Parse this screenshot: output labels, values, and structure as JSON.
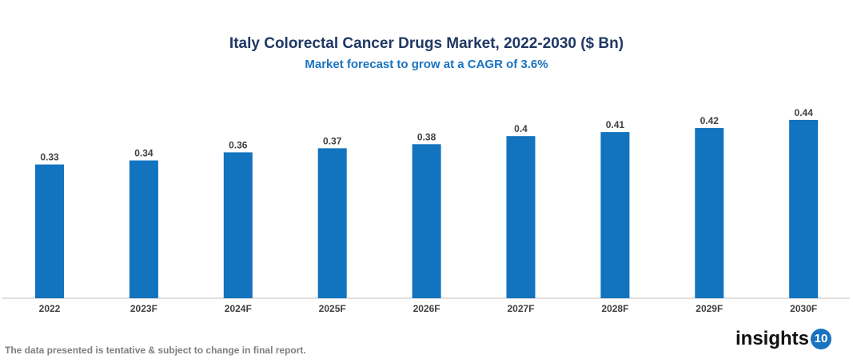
{
  "chart_data": {
    "type": "bar",
    "title": "Italy Colorectal Cancer Drugs Market, 2022-2030 ($ Bn)",
    "subtitle": "Market forecast to grow at a CAGR of 3.6%",
    "categories": [
      "2022",
      "2023F",
      "2024F",
      "2025F",
      "2026F",
      "2027F",
      "2028F",
      "2029F",
      "2030F"
    ],
    "values": [
      0.33,
      0.34,
      0.36,
      0.37,
      0.38,
      0.4,
      0.41,
      0.42,
      0.44
    ],
    "labels": [
      "0.33",
      "0.34",
      "0.36",
      "0.37",
      "0.38",
      "0.4",
      "0.41",
      "0.42",
      "0.44"
    ],
    "xlabel": "",
    "ylabel": "",
    "ylim": [
      0,
      0.5
    ],
    "grid": false,
    "legend": "none",
    "bar_color": "#1273be"
  },
  "footer": {
    "note": "The data presented is tentative & subject to change in final report."
  },
  "logo": {
    "text": "insights",
    "badge": "10"
  }
}
